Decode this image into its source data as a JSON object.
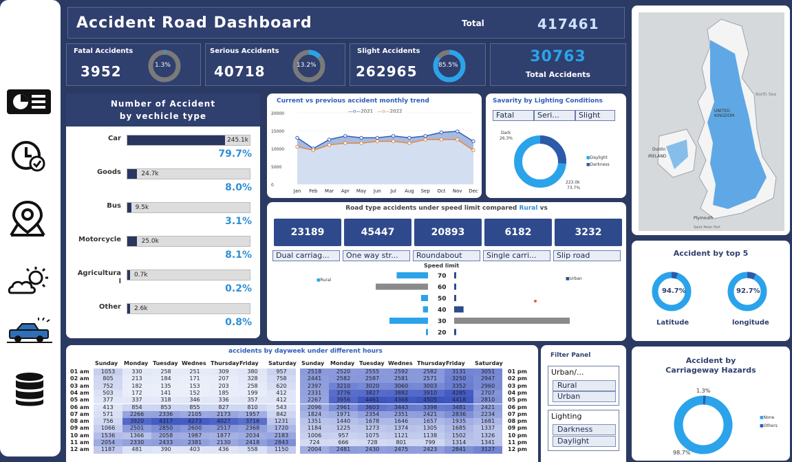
{
  "header": {
    "title": "Accident Road Dashboard",
    "total_label": "Total",
    "total_value": "417461"
  },
  "kpis": [
    {
      "label": "Fatal Accidents",
      "value": "3952",
      "pct": "1.3%",
      "fraction": 0.013
    },
    {
      "label": "Serious Accidents",
      "value": "40718",
      "pct": "13.2%",
      "fraction": 0.132
    },
    {
      "label": "Slight Accidents",
      "value": "262965",
      "pct": "85.5%",
      "fraction": 0.855
    }
  ],
  "total_card": {
    "value": "30763",
    "label": "Total Accidents"
  },
  "nav": {
    "icons": [
      "dashboard-icon",
      "clock-check-icon",
      "location-pin-icon",
      "weather-icon",
      "vehicle-icon",
      "database-icon"
    ]
  },
  "vehicle_panel": {
    "title_line1": "Number of Accident",
    "title_line2": "by vechicle type",
    "rows": [
      {
        "label": "Car",
        "value": "245.1k",
        "pct": "79.7%",
        "fraction": 0.797
      },
      {
        "label": "Goods",
        "value": "24.7k",
        "pct": "8.0%",
        "fraction": 0.08
      },
      {
        "label": "Bus",
        "value": "9.5k",
        "pct": "3.1%",
        "fraction": 0.031
      },
      {
        "label": "Motorcycle",
        "value": "25.0k",
        "pct": "8.1%",
        "fraction": 0.081
      },
      {
        "label": "Agricultura",
        "label2": "l",
        "value": "0.7k",
        "pct": "0.2%",
        "fraction": 0.002
      },
      {
        "label": "Other",
        "value": "2.6k",
        "pct": "0.8%",
        "fraction": 0.008
      }
    ]
  },
  "trend": {
    "title": "Current vs previous accident monthly trend",
    "legend_2021": "2021",
    "legend_2022": "2022",
    "yticks": [
      "20000",
      "15000",
      "10000",
      "5000",
      "0"
    ]
  },
  "lighting": {
    "title": "Savarity by Lighting Conditions",
    "tabs": [
      "Fatal",
      "Seri...",
      "Slight"
    ],
    "dark_label": "Dark",
    "dark_pct": "26.3%",
    "day_label": "223.0k",
    "day_pct": "73.7%",
    "legend": [
      "Daylight",
      "Darkness"
    ]
  },
  "road": {
    "title": "Road type accidents under speed limit compared",
    "title_rural": "Rural",
    "title_vs": "vs",
    "values": [
      "23189",
      "45447",
      "20893",
      "6182",
      "3232"
    ],
    "types": [
      "Dual carriag...",
      "One way str...",
      "Roundabout",
      "Single carri...",
      "Slip road"
    ],
    "speed_label": "Speed limit",
    "rural_legend": "Rural",
    "urban_legend": "Urban"
  },
  "top5": {
    "title": "Accident by top 5",
    "lat_pct": "94.7%",
    "lat_label": "Latitude",
    "lon_pct": "92.7%",
    "lon_label": "longitude"
  },
  "hazard": {
    "title1": "Accident by",
    "title2": "Carriageway Hazards",
    "top_pct": "1.3%",
    "bottom_pct": "98.7%",
    "legend": [
      "None",
      "Others"
    ]
  },
  "heatmap": {
    "title": "accidents by dayweek under different hours",
    "days": [
      "Sunday",
      "Monday",
      "Tuesday",
      "Wednes",
      "Thursday",
      "Friday",
      "Saturday"
    ],
    "am_hours": [
      "01 am",
      "02 am",
      "03 am",
      "04 am",
      "05 am",
      "06 am",
      "07 am",
      "08 am",
      "09 am",
      "10 am",
      "11 am",
      "12 am"
    ],
    "pm_hours": [
      "01 pm",
      "02 pm",
      "03 pm",
      "04 pm",
      "05 pm",
      "06 pm",
      "07 pm",
      "08 pm",
      "09 pm",
      "10 pm",
      "11 pm",
      "12 pm"
    ],
    "am_rows": [
      [
        "1053",
        "330",
        "258",
        "251",
        "309",
        "380",
        "957"
      ],
      [
        "805",
        "213",
        "184",
        "171",
        "207",
        "328",
        "758"
      ],
      [
        "752",
        "182",
        "135",
        "153",
        "203",
        "258",
        "620"
      ],
      [
        "503",
        "172",
        "141",
        "152",
        "185",
        "199",
        "412"
      ],
      [
        "377",
        "337",
        "318",
        "346",
        "336",
        "357",
        "412"
      ],
      [
        "413",
        "854",
        "853",
        "855",
        "827",
        "810",
        "543"
      ],
      [
        "571",
        "2266",
        "2336",
        "2105",
        "2173",
        "1957",
        "842"
      ],
      [
        "756",
        "3920",
        "4317",
        "4273",
        "4027",
        "3716",
        "1231"
      ],
      [
        "1066",
        "2501",
        "2850",
        "2600",
        "2517",
        "2368",
        "1720"
      ],
      [
        "1536",
        "1366",
        "2058",
        "1987",
        "1877",
        "2034",
        "2183"
      ],
      [
        "2054",
        "2330",
        "2433",
        "2381",
        "2130",
        "2418",
        "2843"
      ],
      [
        "1187",
        "481",
        "390",
        "403",
        "436",
        "558",
        "1150"
      ]
    ],
    "pm_rows": [
      [
        "2518",
        "2520",
        "2555",
        "2592",
        "2582",
        "3131",
        "3051"
      ],
      [
        "2441",
        "2582",
        "2587",
        "2581",
        "2571",
        "3250",
        "2947"
      ],
      [
        "2397",
        "3210",
        "3020",
        "3060",
        "3003",
        "3352",
        "2960"
      ],
      [
        "2331",
        "3776",
        "3827",
        "3882",
        "3910",
        "4285",
        "2707"
      ],
      [
        "2267",
        "3956",
        "4461",
        "4368",
        "4505",
        "4418",
        "2810"
      ],
      [
        "2096",
        "2961",
        "3603",
        "3443",
        "3398",
        "3481",
        "2421"
      ],
      [
        "1824",
        "1971",
        "2354",
        "2351",
        "2421",
        "2836",
        "2234"
      ],
      [
        "1351",
        "1440",
        "1678",
        "1646",
        "1657",
        "1935",
        "1681"
      ],
      [
        "1184",
        "1225",
        "1273",
        "1374",
        "1305",
        "1685",
        "1337"
      ],
      [
        "1006",
        "957",
        "1075",
        "1121",
        "1138",
        "1502",
        "1326"
      ],
      [
        "724",
        "666",
        "728",
        "801",
        "799",
        "1314",
        "1341"
      ],
      [
        "2004",
        "2481",
        "2430",
        "2475",
        "2423",
        "2841",
        "3127"
      ]
    ]
  },
  "filter": {
    "title": "Filter Panel",
    "urban_title": "Urban/...",
    "urban_options": [
      "Rural",
      "Urban"
    ],
    "lighting_title": "Lighting",
    "lighting_options": [
      "Darkness",
      "Daylight"
    ]
  },
  "map": {
    "labels": [
      "UNITED KINGDOM",
      "North Sea",
      "Dublin",
      "IRELAND",
      "Plymouth",
      "Saint Peter Port"
    ]
  },
  "chart_data": [
    {
      "type": "bar",
      "title": "Number of Accident by vechicle type",
      "categories": [
        "Car",
        "Goods",
        "Bus",
        "Motorcycle",
        "Agricultural",
        "Other"
      ],
      "values": [
        245.1,
        24.7,
        9.5,
        25.0,
        0.7,
        2.6
      ],
      "unit": "k"
    },
    {
      "type": "area",
      "title": "Current vs previous accident monthly trend",
      "categories": [
        "Jan",
        "Feb",
        "Mar",
        "Apr",
        "May",
        "Jun",
        "Jul",
        "Aug",
        "Sep",
        "Oct",
        "Nov",
        "Dec"
      ],
      "series": [
        {
          "name": "2021",
          "values": [
            13000,
            10000,
            12500,
            13500,
            13000,
            13000,
            13500,
            13000,
            13500,
            14500,
            14800,
            12000
          ]
        },
        {
          "name": "2022",
          "values": [
            10500,
            9500,
            11000,
            11500,
            11500,
            12000,
            12000,
            11500,
            12500,
            12500,
            12500,
            9500
          ]
        }
      ],
      "ylim": [
        0,
        20000
      ]
    },
    {
      "type": "pie",
      "title": "Savarity by Lighting Conditions",
      "categories": [
        "Daylight",
        "Darkness"
      ],
      "values": [
        73.7,
        26.3
      ]
    },
    {
      "type": "bar",
      "title": "Road type accidents under speed limit compared Rural vs",
      "categories": [
        "70",
        "60",
        "50",
        "40",
        "30",
        "20"
      ],
      "series": [
        {
          "name": "Rural",
          "values": [
            25026,
            41760,
            5500,
            4000,
            30767,
            500
          ]
        },
        {
          "name": "Urban",
          "values": [
            1500,
            1200,
            3105,
            14200,
            174555,
            900
          ]
        }
      ]
    },
    {
      "type": "pie",
      "title": "Accident by Carriageway Hazards",
      "categories": [
        "None",
        "Others"
      ],
      "values": [
        98.7,
        1.3
      ]
    }
  ]
}
